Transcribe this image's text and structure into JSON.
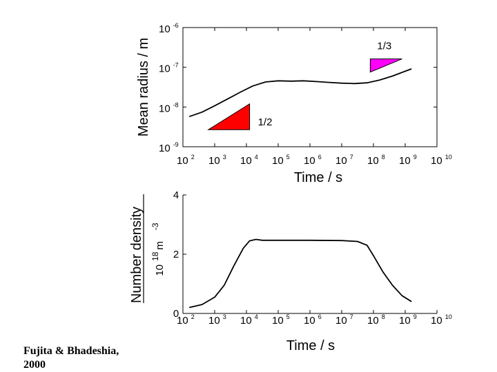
{
  "citation": {
    "line1": "Fujita & Bhadeshia,",
    "line2": "2000"
  },
  "chart_data": [
    {
      "type": "line",
      "ylabel": "Mean radius / m",
      "xlabel": "Time / s",
      "xscale": "log",
      "yscale": "log",
      "xlim_exp": [
        2,
        10
      ],
      "ylim_exp": [
        -9,
        -6
      ],
      "x_tick_base": "10",
      "x_tick_exponents": [
        "2",
        "3",
        "4",
        "5",
        "6",
        "7",
        "8",
        "9",
        "10"
      ],
      "y_tick_base": "10",
      "y_tick_exponents": [
        "-9",
        "-8",
        "-7",
        "-6"
      ],
      "series": [
        {
          "name": "mean radius",
          "log_x": [
            2.2,
            2.6,
            3.0,
            3.4,
            3.8,
            4.2,
            4.6,
            5.0,
            5.4,
            5.8,
            6.2,
            6.6,
            7.0,
            7.4,
            7.8,
            8.2,
            8.6,
            9.0,
            9.2
          ],
          "log_y": [
            -8.24,
            -8.13,
            -7.97,
            -7.8,
            -7.63,
            -7.47,
            -7.37,
            -7.34,
            -7.35,
            -7.34,
            -7.36,
            -7.38,
            -7.4,
            -7.41,
            -7.39,
            -7.32,
            -7.22,
            -7.1,
            -7.04
          ]
        }
      ],
      "slope_markers": [
        {
          "label": "1/2",
          "color": "#ff0000",
          "corner_log": [
            2.8,
            -8.57
          ],
          "run_decades": 1.3,
          "slope": 0.5
        },
        {
          "label": "1/3",
          "color": "#ff00ff",
          "corner_log": [
            7.9,
            -7.12
          ],
          "run_decades": 1.0,
          "slope": 0.33
        }
      ]
    },
    {
      "type": "line",
      "ylabel": "Number density",
      "yunits": {
        "base": "10",
        "exp": "18",
        "unit": "m",
        "unit_exp": "-3"
      },
      "xlabel": "Time / s",
      "xscale": "log",
      "xlim_exp": [
        2,
        10
      ],
      "ylim": [
        0,
        4
      ],
      "y_ticks": [
        "0",
        "2",
        "4"
      ],
      "x_tick_base": "10",
      "x_tick_exponents": [
        "2",
        "3",
        "4",
        "5",
        "6",
        "7",
        "8",
        "9",
        "10"
      ],
      "series": [
        {
          "name": "number density",
          "log_x": [
            2.2,
            2.6,
            3.0,
            3.3,
            3.6,
            3.9,
            4.1,
            4.3,
            4.5,
            5.0,
            6.0,
            7.0,
            7.5,
            7.8,
            8.0,
            8.3,
            8.6,
            8.9,
            9.2
          ],
          "y": [
            0.2,
            0.3,
            0.55,
            0.95,
            1.6,
            2.2,
            2.45,
            2.5,
            2.47,
            2.47,
            2.47,
            2.46,
            2.43,
            2.3,
            1.95,
            1.4,
            0.95,
            0.6,
            0.4
          ]
        }
      ]
    }
  ]
}
